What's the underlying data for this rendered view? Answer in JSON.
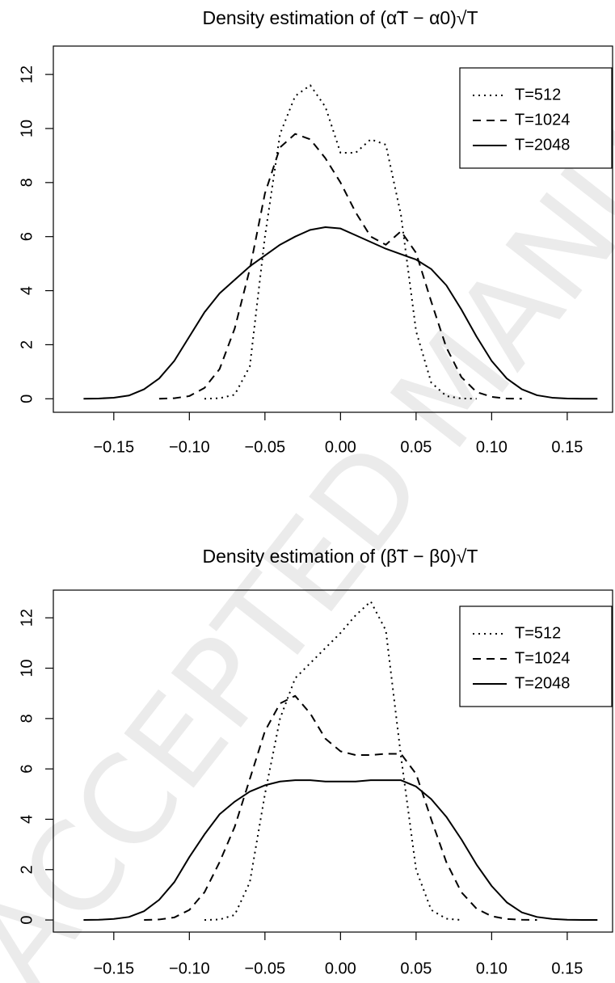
{
  "watermark": "ACCEPTED MANUSCRIPT",
  "chart_data": [
    {
      "type": "line",
      "title": "Density estimation of (α̃T − α0)√T",
      "x": [
        -0.17,
        -0.16,
        -0.15,
        -0.14,
        -0.13,
        -0.12,
        -0.11,
        -0.1,
        -0.09,
        -0.08,
        -0.07,
        -0.06,
        -0.05,
        -0.04,
        -0.03,
        -0.02,
        -0.01,
        0,
        0.01,
        0.02,
        0.03,
        0.04,
        0.05,
        0.06,
        0.07,
        0.08,
        0.09,
        0.1,
        0.11,
        0.12,
        0.13,
        0.14,
        0.15,
        0.16,
        0.17
      ],
      "series": [
        {
          "name": "T=512",
          "color": "#000000",
          "line_style": "dotted",
          "values": [
            null,
            null,
            null,
            null,
            null,
            null,
            null,
            null,
            0,
            0.02,
            0.15,
            1.2,
            6.0,
            9.8,
            11.2,
            11.6,
            10.8,
            9.1,
            9.1,
            9.6,
            9.4,
            6.8,
            2.5,
            0.6,
            0.1,
            0.01,
            0,
            null,
            null,
            null,
            null,
            null,
            null,
            null,
            null
          ]
        },
        {
          "name": "T=1024",
          "color": "#000000",
          "line_style": "dashed",
          "values": [
            null,
            null,
            null,
            null,
            null,
            0,
            0.02,
            0.1,
            0.4,
            1.1,
            2.6,
            4.8,
            7.6,
            9.3,
            9.8,
            9.6,
            8.9,
            8.0,
            6.9,
            6.0,
            5.7,
            6.2,
            5.4,
            3.6,
            1.9,
            0.8,
            0.25,
            0.07,
            0.01,
            0,
            null,
            null,
            null,
            null,
            null
          ]
        },
        {
          "name": "T=2048",
          "color": "#000000",
          "line_style": "solid",
          "values": [
            0,
            0.01,
            0.04,
            0.12,
            0.35,
            0.75,
            1.4,
            2.3,
            3.2,
            3.9,
            4.4,
            4.9,
            5.3,
            5.7,
            6.0,
            6.25,
            6.35,
            6.3,
            6.05,
            5.8,
            5.55,
            5.35,
            5.15,
            4.8,
            4.2,
            3.3,
            2.3,
            1.4,
            0.75,
            0.35,
            0.13,
            0.04,
            0.01,
            0,
            0
          ]
        }
      ],
      "xlim": [
        -0.19,
        0.18
      ],
      "xticks": [
        {
          "value": -0.15,
          "label": "−0.15"
        },
        {
          "value": -0.1,
          "label": "−0.10"
        },
        {
          "value": -0.05,
          "label": "−0.05"
        },
        {
          "value": 0,
          "label": "0.00"
        },
        0.05,
        {
          "value": 0.1,
          "label": "0.10"
        },
        0.15
      ],
      "ylim": [
        -0.5,
        13.05
      ],
      "yticks": [
        0,
        2,
        4,
        6,
        8,
        10,
        12
      ],
      "grid": false,
      "legend": "topright"
    },
    {
      "type": "line",
      "title": "Density estimation of (β̃T − β0)√T",
      "x": [
        -0.17,
        -0.16,
        -0.15,
        -0.14,
        -0.13,
        -0.12,
        -0.11,
        -0.1,
        -0.09,
        -0.08,
        -0.07,
        -0.06,
        -0.05,
        -0.04,
        -0.03,
        -0.02,
        -0.01,
        0,
        0.01,
        0.02,
        0.03,
        0.04,
        0.05,
        0.06,
        0.07,
        0.08,
        0.09,
        0.1,
        0.11,
        0.12,
        0.13,
        0.14,
        0.15,
        0.16,
        0.17
      ],
      "series": [
        {
          "name": "T=512",
          "color": "#000000",
          "line_style": "dotted",
          "values": [
            null,
            null,
            null,
            null,
            null,
            null,
            null,
            null,
            0,
            0.02,
            0.2,
            1.5,
            5.0,
            8.0,
            9.6,
            10.2,
            10.8,
            11.4,
            12.1,
            12.65,
            11.5,
            6.5,
            2.0,
            0.4,
            0.05,
            0,
            null,
            null,
            null,
            null,
            null,
            null,
            null,
            null,
            null
          ]
        },
        {
          "name": "T=1024",
          "color": "#000000",
          "line_style": "dashed",
          "values": [
            null,
            null,
            null,
            null,
            0,
            0.02,
            0.1,
            0.4,
            1.1,
            2.3,
            3.7,
            5.6,
            7.5,
            8.6,
            8.9,
            8.2,
            7.2,
            6.7,
            6.55,
            6.55,
            6.6,
            6.6,
            5.8,
            4.0,
            2.3,
            1.1,
            0.45,
            0.15,
            0.04,
            0.01,
            0,
            null,
            null,
            null,
            null
          ]
        },
        {
          "name": "T=2048",
          "color": "#000000",
          "line_style": "solid",
          "values": [
            0,
            0.01,
            0.04,
            0.12,
            0.35,
            0.8,
            1.5,
            2.5,
            3.4,
            4.2,
            4.7,
            5.1,
            5.35,
            5.5,
            5.55,
            5.55,
            5.5,
            5.5,
            5.5,
            5.55,
            5.55,
            5.55,
            5.3,
            4.8,
            4.1,
            3.2,
            2.2,
            1.35,
            0.7,
            0.3,
            0.12,
            0.04,
            0.01,
            0,
            0
          ]
        }
      ],
      "xlim": [
        -0.19,
        0.18
      ],
      "xticks": [
        {
          "value": -0.15,
          "label": "−0.15"
        },
        {
          "value": -0.1,
          "label": "−0.10"
        },
        {
          "value": -0.05,
          "label": "−0.05"
        },
        {
          "value": 0,
          "label": "0.00"
        },
        0.05,
        {
          "value": 0.1,
          "label": "0.10"
        },
        0.15
      ],
      "ylim": [
        -0.48,
        13.1
      ],
      "yticks": [
        0,
        2,
        4,
        6,
        8,
        10,
        12
      ],
      "grid": false,
      "legend": "topright"
    }
  ]
}
